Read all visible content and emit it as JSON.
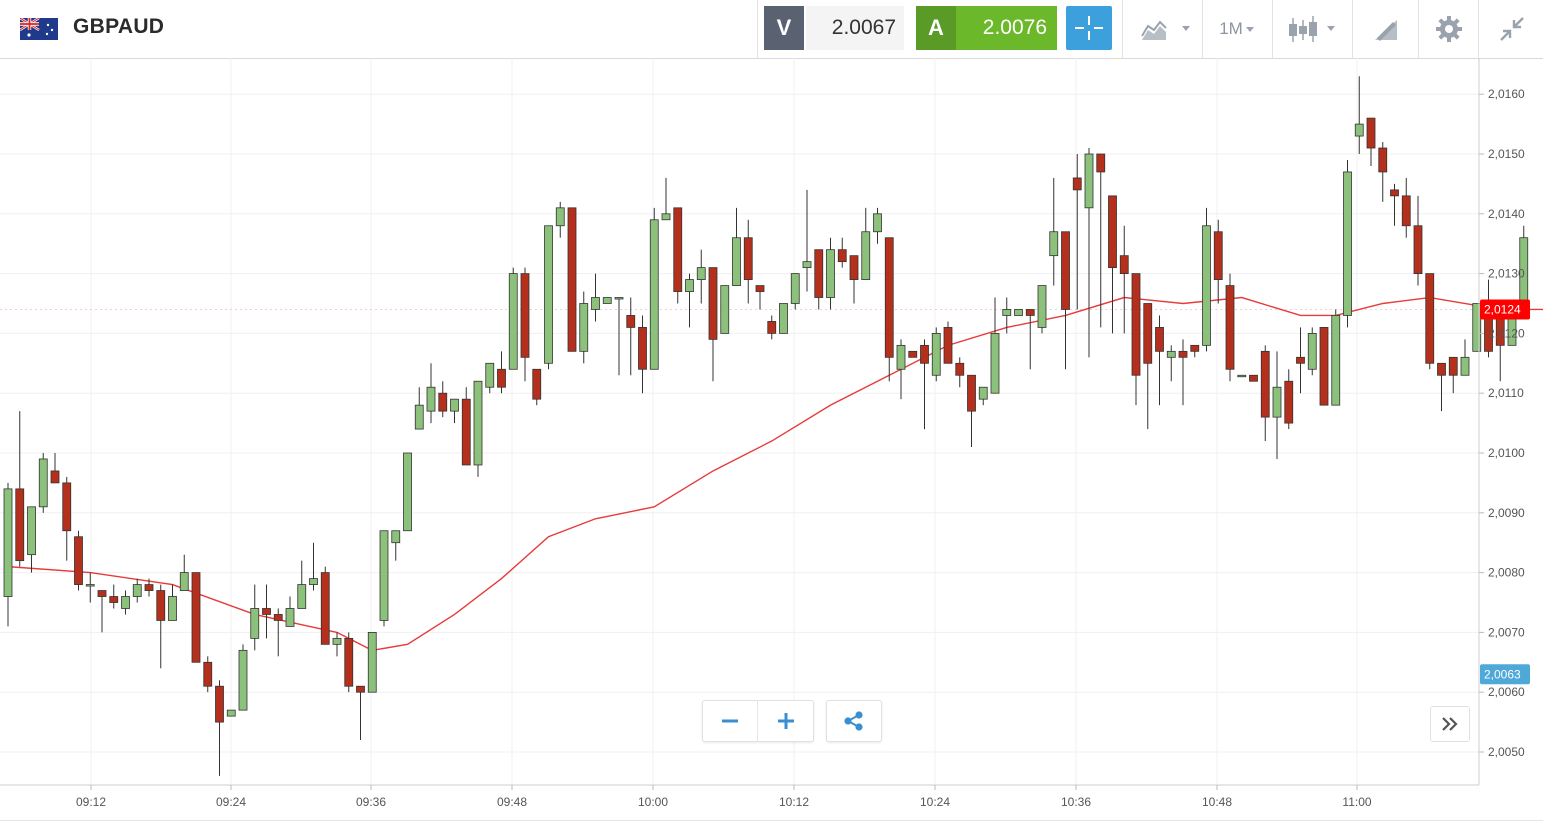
{
  "header": {
    "symbol": "GBPAUD",
    "flag_icon": "gb-au-flag-icon",
    "sell": {
      "letter": "V",
      "price": "2.0067"
    },
    "buy": {
      "letter": "A",
      "price": "2.0076"
    },
    "crosshair_icon": "crosshair-icon",
    "chart_type_icon": "area-chart-icon",
    "timeframe": "1M",
    "candle_icon": "candlestick-icon",
    "draw_icon": "drawing-tools-icon",
    "settings_icon": "gear-icon",
    "collapse_icon": "collapse-icon"
  },
  "controls": {
    "zoom_out_icon": "minus-icon",
    "zoom_in_icon": "plus-icon",
    "share_icon": "share-icon",
    "scroll_icon": "chevron-double-right-icon"
  },
  "colors": {
    "up": "#8cc17b",
    "down": "#b5301c",
    "ma": "#e83a3a",
    "last_price_tag": "#ff0000",
    "bid_tag": "#4ea8d8",
    "buy_green": "#6cb82b",
    "sell_gray": "#5a6272"
  },
  "chart_data": {
    "type": "candlestick",
    "ylim": [
      2.0045,
      2.0165
    ],
    "y_ticks": [
      "2,0050",
      "2,0060",
      "2,0070",
      "2,0080",
      "2,0090",
      "2,0100",
      "2,0110",
      "2,0120",
      "2,0130",
      "2,0140",
      "2,0150",
      "2,0160"
    ],
    "x_ticks": [
      "09:12",
      "09:24",
      "09:36",
      "09:48",
      "10:00",
      "10:12",
      "10:24",
      "10:36",
      "10:48",
      "11:00"
    ],
    "last_price_label": "2,0124",
    "bid_price_label": "2,0063",
    "candles": [
      [
        2.0076,
        2.0094,
        2.0071,
        2.0095
      ],
      [
        2.0094,
        2.0082,
        2.0081,
        2.0107
      ],
      [
        2.0083,
        2.0091,
        2.008,
        2.0091
      ],
      [
        2.0091,
        2.0099,
        2.009,
        2.01
      ],
      [
        2.0097,
        2.0095,
        2.0095,
        2.01
      ],
      [
        2.0095,
        2.0087,
        2.0082,
        2.0096
      ],
      [
        2.0086,
        2.0078,
        2.0077,
        2.0087
      ],
      [
        2.0078,
        2.0078,
        2.0075,
        2.008
      ],
      [
        2.0077,
        2.0076,
        2.007,
        2.0077
      ],
      [
        2.0076,
        2.0075,
        2.0074,
        2.0078
      ],
      [
        2.0074,
        2.0076,
        2.0073,
        2.0077
      ],
      [
        2.0076,
        2.0078,
        2.0075,
        2.0079
      ],
      [
        2.0078,
        2.0077,
        2.0076,
        2.0079
      ],
      [
        2.0077,
        2.0072,
        2.0064,
        2.0078
      ],
      [
        2.0072,
        2.0076,
        2.0072,
        2.0078
      ],
      [
        2.0077,
        2.008,
        2.0077,
        2.0083
      ],
      [
        2.008,
        2.0065,
        2.0065,
        2.008
      ],
      [
        2.0065,
        2.0061,
        2.006,
        2.0066
      ],
      [
        2.0061,
        2.0055,
        2.0046,
        2.0062
      ],
      [
        2.0056,
        2.0057,
        2.0056,
        2.0057
      ],
      [
        2.0057,
        2.0067,
        2.0057,
        2.0068
      ],
      [
        2.0069,
        2.0074,
        2.0067,
        2.0078
      ],
      [
        2.0074,
        2.0073,
        2.0069,
        2.0078
      ],
      [
        2.0073,
        2.0072,
        2.0066,
        2.0074
      ],
      [
        2.0071,
        2.0074,
        2.0071,
        2.0076
      ],
      [
        2.0074,
        2.0078,
        2.0074,
        2.0082
      ],
      [
        2.0078,
        2.0079,
        2.0077,
        2.0085
      ],
      [
        2.008,
        2.0068,
        2.0068,
        2.0081
      ],
      [
        2.0068,
        2.0069,
        2.0066,
        2.007
      ],
      [
        2.0069,
        2.0061,
        2.006,
        2.007
      ],
      [
        2.0061,
        2.006,
        2.0052,
        2.0061
      ],
      [
        2.006,
        2.007,
        2.006,
        2.007
      ],
      [
        2.0072,
        2.0087,
        2.0071,
        2.0087
      ],
      [
        2.0085,
        2.0087,
        2.0082,
        2.0087
      ],
      [
        2.0087,
        2.01,
        2.0087,
        2.01
      ],
      [
        2.0104,
        2.0108,
        2.0104,
        2.0111
      ],
      [
        2.0107,
        2.0111,
        2.0105,
        2.0115
      ],
      [
        2.011,
        2.0107,
        2.0106,
        2.0112
      ],
      [
        2.0107,
        2.0109,
        2.0105,
        2.0109
      ],
      [
        2.0109,
        2.0098,
        2.0098,
        2.0111
      ],
      [
        2.0098,
        2.0112,
        2.0096,
        2.0112
      ],
      [
        2.0111,
        2.0115,
        2.011,
        2.0115
      ],
      [
        2.0114,
        2.0111,
        2.011,
        2.0117
      ],
      [
        2.0114,
        2.013,
        2.0114,
        2.0131
      ],
      [
        2.013,
        2.0116,
        2.0112,
        2.0131
      ],
      [
        2.0114,
        2.0109,
        2.0108,
        2.0114
      ],
      [
        2.0115,
        2.0138,
        2.0114,
        2.0138
      ],
      [
        2.0138,
        2.0141,
        2.0136,
        2.0142
      ],
      [
        2.0141,
        2.0117,
        2.0117,
        2.0141
      ],
      [
        2.0117,
        2.0125,
        2.0115,
        2.0127
      ],
      [
        2.0124,
        2.0126,
        2.0122,
        2.013
      ],
      [
        2.0125,
        2.0126,
        2.0125,
        2.0126
      ],
      [
        2.0126,
        2.0126,
        2.0113,
        2.0126
      ],
      [
        2.0123,
        2.0121,
        2.0113,
        2.0126
      ],
      [
        2.0121,
        2.0114,
        2.011,
        2.0123
      ],
      [
        2.0114,
        2.0139,
        2.0114,
        2.0141
      ],
      [
        2.0139,
        2.014,
        2.0139,
        2.0146
      ],
      [
        2.0141,
        2.0127,
        2.0125,
        2.0141
      ],
      [
        2.0127,
        2.0129,
        2.0121,
        2.013
      ],
      [
        2.0129,
        2.0131,
        2.0125,
        2.0134
      ],
      [
        2.0131,
        2.0119,
        2.0112,
        2.0131
      ],
      [
        2.012,
        2.0128,
        2.012,
        2.0128
      ],
      [
        2.0128,
        2.0136,
        2.0128,
        2.0141
      ],
      [
        2.0136,
        2.0129,
        2.0125,
        2.0139
      ],
      [
        2.0128,
        2.0127,
        2.0124,
        2.0128
      ],
      [
        2.0122,
        2.012,
        2.0119,
        2.0123
      ],
      [
        2.012,
        2.0125,
        2.012,
        2.0125
      ],
      [
        2.0125,
        2.013,
        2.0124,
        2.013
      ],
      [
        2.0131,
        2.0132,
        2.0127,
        2.0144
      ],
      [
        2.0134,
        2.0126,
        2.0124,
        2.0134
      ],
      [
        2.0126,
        2.0134,
        2.0124,
        2.0136
      ],
      [
        2.0134,
        2.0132,
        2.0131,
        2.0136
      ],
      [
        2.0133,
        2.0129,
        2.0125,
        2.0133
      ],
      [
        2.0129,
        2.0137,
        2.0129,
        2.0141
      ],
      [
        2.0137,
        2.014,
        2.0135,
        2.0141
      ],
      [
        2.0136,
        2.0116,
        2.0112,
        2.0136
      ],
      [
        2.0114,
        2.0118,
        2.0109,
        2.0119
      ],
      [
        2.0117,
        2.0116,
        2.0116,
        2.0116
      ],
      [
        2.0118,
        2.0115,
        2.0104,
        2.0119
      ],
      [
        2.0113,
        2.012,
        2.0112,
        2.0121
      ],
      [
        2.0121,
        2.0115,
        2.0115,
        2.0122
      ],
      [
        2.0115,
        2.0113,
        2.0111,
        2.0116
      ],
      [
        2.0113,
        2.0107,
        2.0101,
        2.0113
      ],
      [
        2.0109,
        2.0111,
        2.0108,
        2.0111
      ],
      [
        2.011,
        2.012,
        2.011,
        2.0126
      ],
      [
        2.0123,
        2.0124,
        2.012,
        2.0126
      ],
      [
        2.0123,
        2.0124,
        2.0123,
        2.0124
      ],
      [
        2.0124,
        2.0123,
        2.0114,
        2.0124
      ],
      [
        2.0121,
        2.0128,
        2.012,
        2.0128
      ],
      [
        2.0133,
        2.0137,
        2.0128,
        2.0146
      ],
      [
        2.0137,
        2.0124,
        2.0114,
        2.0137
      ],
      [
        2.0146,
        2.0144,
        2.0124,
        2.015
      ],
      [
        2.0141,
        2.015,
        2.0116,
        2.0151
      ],
      [
        2.015,
        2.0147,
        2.0121,
        2.015
      ],
      [
        2.0143,
        2.0131,
        2.012,
        2.0143
      ],
      [
        2.0133,
        2.013,
        2.012,
        2.0138
      ],
      [
        2.013,
        2.0113,
        2.0108,
        2.013
      ],
      [
        2.0125,
        2.0115,
        2.0104,
        2.0125
      ],
      [
        2.0121,
        2.0117,
        2.0108,
        2.0123
      ],
      [
        2.0116,
        2.0117,
        2.0112,
        2.0118
      ],
      [
        2.0117,
        2.0116,
        2.0108,
        2.0119
      ],
      [
        2.0118,
        2.0117,
        2.0116,
        2.0118
      ],
      [
        2.0118,
        2.0138,
        2.0117,
        2.0141
      ],
      [
        2.0137,
        2.0129,
        2.0125,
        2.0139
      ],
      [
        2.0128,
        2.0114,
        2.0112,
        2.013
      ],
      [
        2.0113,
        2.0113,
        2.0113,
        2.0113
      ],
      [
        2.0113,
        2.0112,
        2.0112,
        2.0113
      ],
      [
        2.0117,
        2.0106,
        2.0102,
        2.0118
      ],
      [
        2.0106,
        2.0111,
        2.0099,
        2.0117
      ],
      [
        2.0112,
        2.0105,
        2.0104,
        2.0114
      ],
      [
        2.0116,
        2.0115,
        2.011,
        2.0121
      ],
      [
        2.0114,
        2.012,
        2.0113,
        2.0121
      ],
      [
        2.0121,
        2.0108,
        2.0108,
        2.0121
      ],
      [
        2.0108,
        2.0123,
        2.0108,
        2.0124
      ],
      [
        2.0123,
        2.0147,
        2.0121,
        2.0149
      ],
      [
        2.0153,
        2.0155,
        2.015,
        2.0163
      ],
      [
        2.0156,
        2.0151,
        2.0148,
        2.0156
      ],
      [
        2.0151,
        2.0147,
        2.0142,
        2.0152
      ],
      [
        2.0144,
        2.0143,
        2.0138,
        2.0145
      ],
      [
        2.0143,
        2.0138,
        2.0136,
        2.0146
      ],
      [
        2.0138,
        2.013,
        2.0128,
        2.0143
      ],
      [
        2.013,
        2.0115,
        2.0114,
        2.013
      ],
      [
        2.0115,
        2.0113,
        2.0107,
        2.0115
      ],
      [
        2.0116,
        2.0113,
        2.011,
        2.0116
      ],
      [
        2.0113,
        2.0116,
        2.0113,
        2.0119
      ],
      [
        2.0117,
        2.0125,
        2.0117,
        2.0125
      ],
      [
        2.0125,
        2.0117,
        2.0116,
        2.0129
      ],
      [
        2.0123,
        2.0118,
        2.0112,
        2.0125
      ],
      [
        2.0118,
        2.0124,
        2.0118,
        2.0125
      ],
      [
        2.0124,
        2.0136,
        2.0124,
        2.0138
      ]
    ],
    "moving_average": [
      [
        0,
        2.0081
      ],
      [
        7,
        2.008
      ],
      [
        14,
        2.0078
      ],
      [
        21,
        2.0073
      ],
      [
        28,
        2.007
      ],
      [
        31,
        2.0067
      ],
      [
        34,
        2.0068
      ],
      [
        38,
        2.0073
      ],
      [
        42,
        2.0079
      ],
      [
        46,
        2.0086
      ],
      [
        50,
        2.0089
      ],
      [
        55,
        2.0091
      ],
      [
        60,
        2.0097
      ],
      [
        65,
        2.0102
      ],
      [
        70,
        2.0108
      ],
      [
        75,
        2.0113
      ],
      [
        80,
        2.0118
      ],
      [
        85,
        2.0121
      ],
      [
        90,
        2.0123
      ],
      [
        95,
        2.0126
      ],
      [
        100,
        2.0125
      ],
      [
        105,
        2.0126
      ],
      [
        110,
        2.0123
      ],
      [
        113,
        2.0123
      ],
      [
        117,
        2.0125
      ],
      [
        121,
        2.0126
      ],
      [
        127,
        2.0124
      ],
      [
        132,
        2.0124
      ]
    ]
  }
}
